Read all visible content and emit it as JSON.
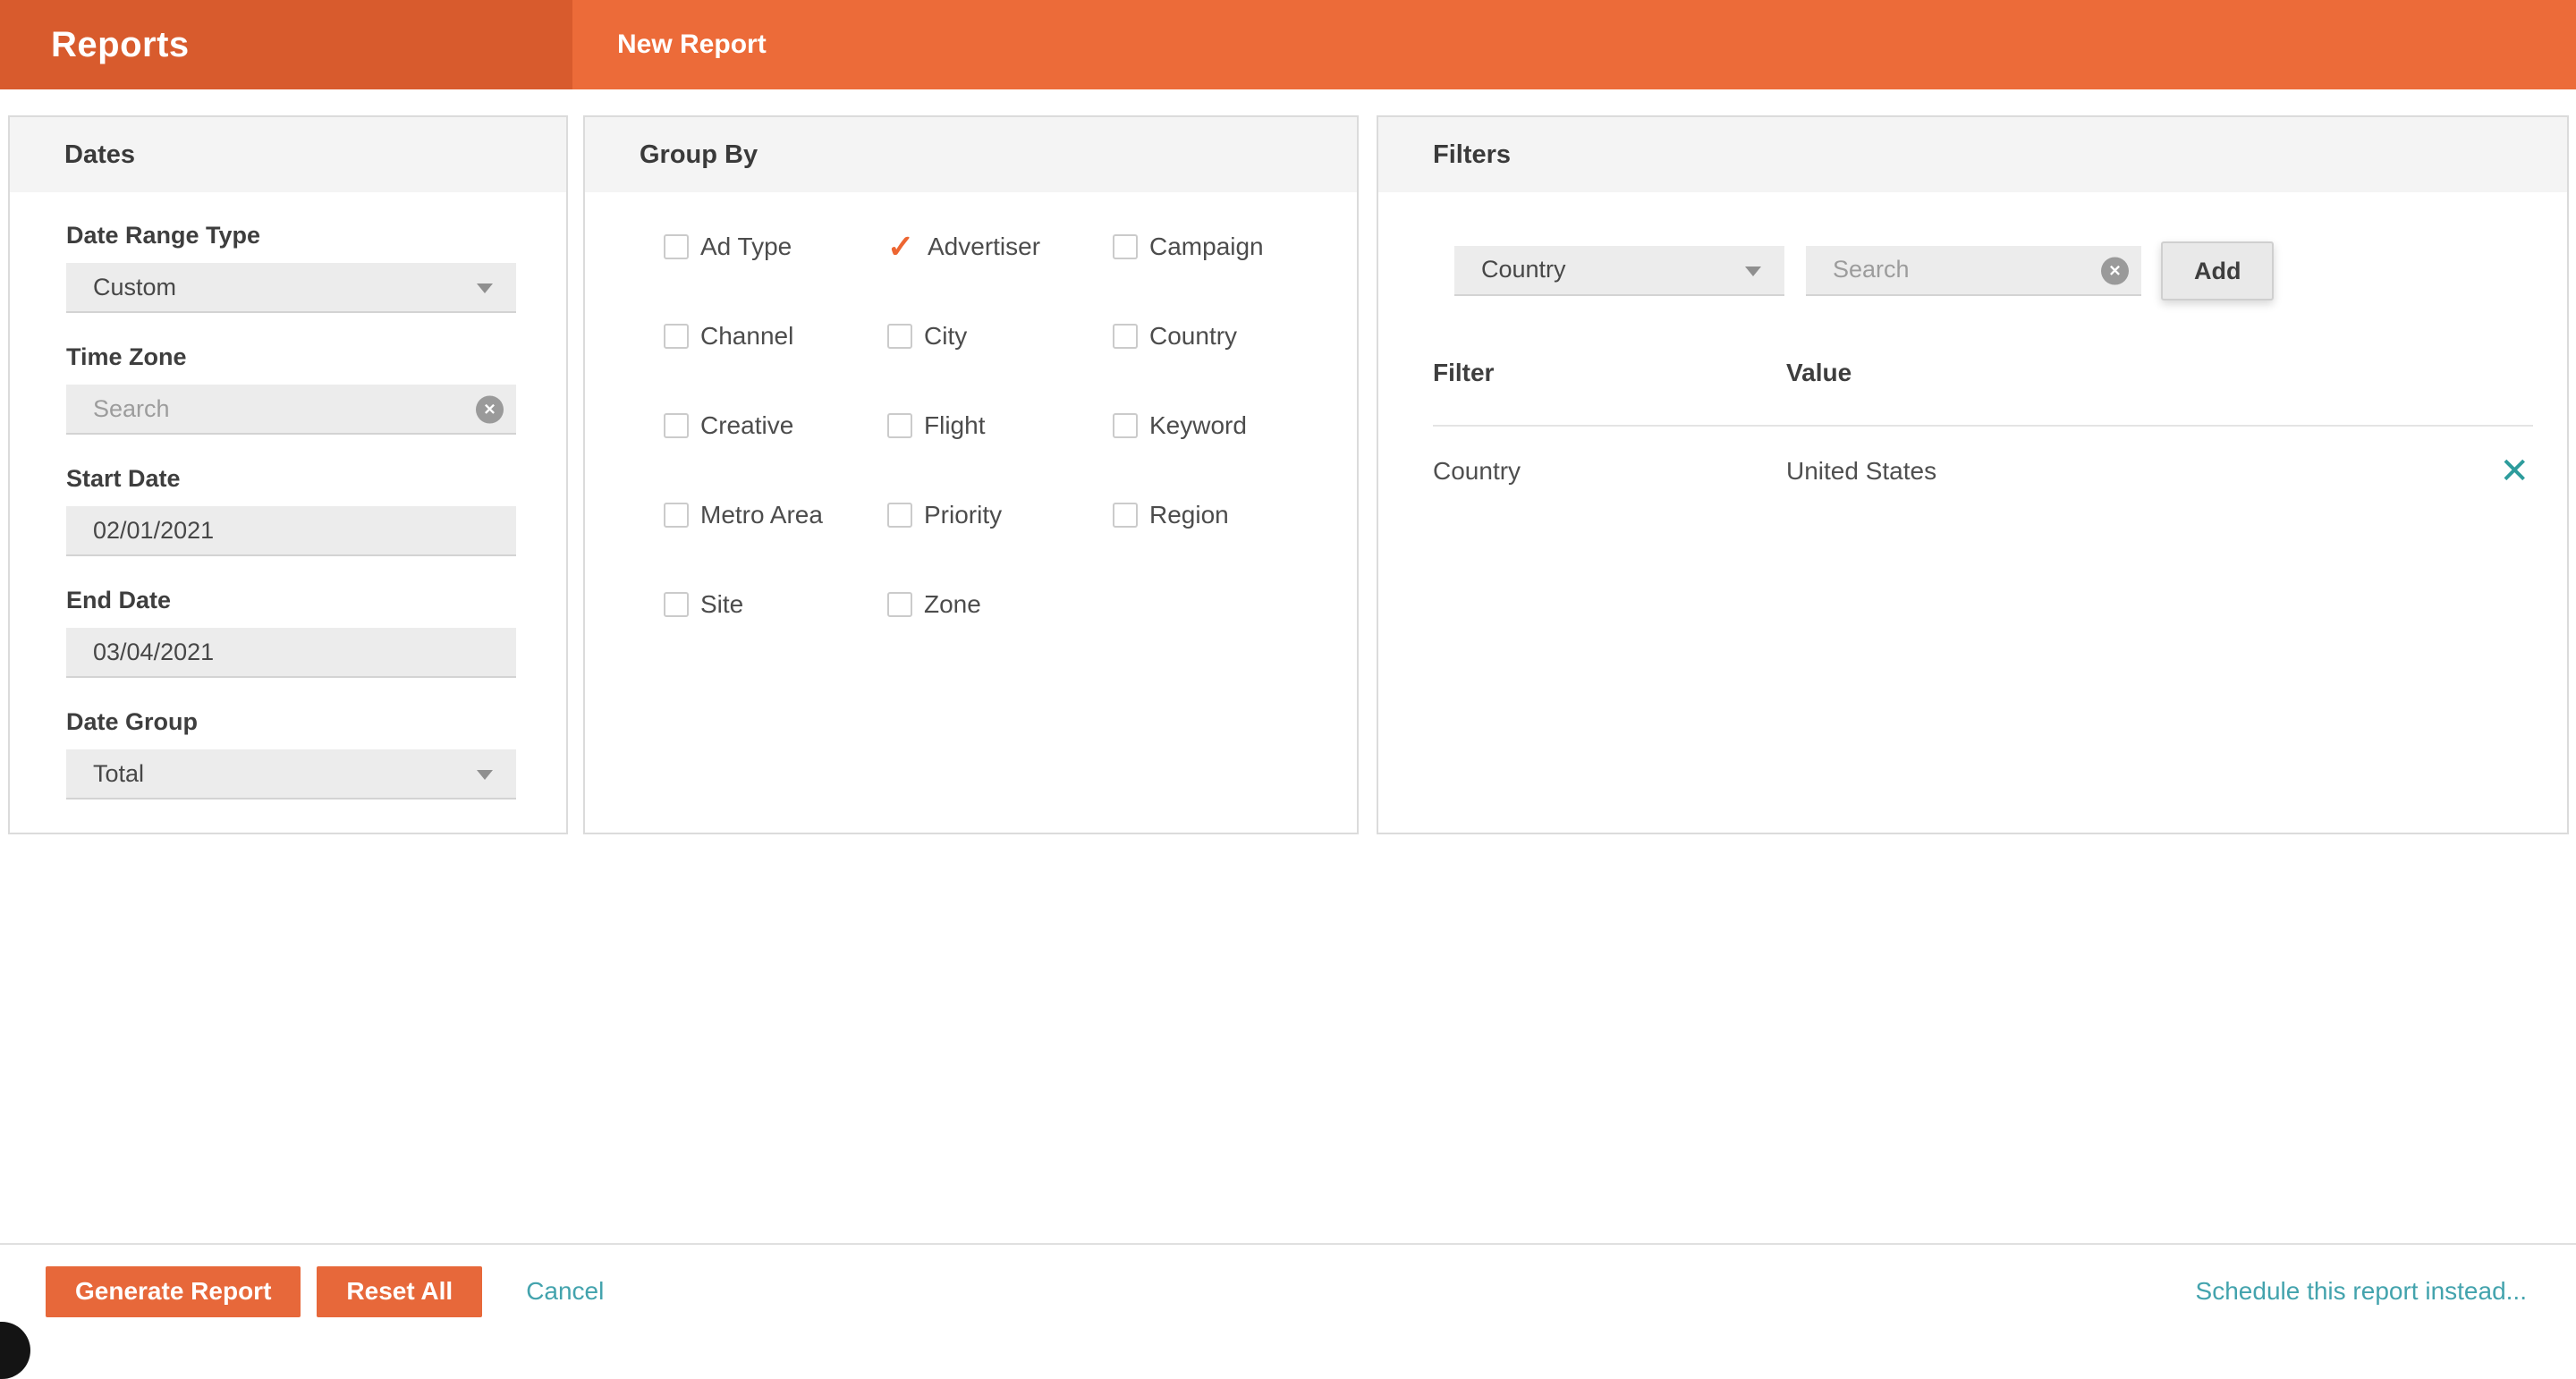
{
  "header": {
    "title": "Reports",
    "tab_label": "New Report"
  },
  "dates": {
    "panel_title": "Dates",
    "date_range_type": {
      "label": "Date Range Type",
      "value": "Custom"
    },
    "time_zone": {
      "label": "Time Zone",
      "placeholder": "Search"
    },
    "start_date": {
      "label": "Start Date",
      "value": "02/01/2021"
    },
    "end_date": {
      "label": "End Date",
      "value": "03/04/2021"
    },
    "date_group": {
      "label": "Date Group",
      "value": "Total"
    }
  },
  "group_by": {
    "panel_title": "Group By",
    "options": [
      {
        "label": "Ad Type",
        "checked": false
      },
      {
        "label": "Advertiser",
        "checked": true
      },
      {
        "label": "Campaign",
        "checked": false
      },
      {
        "label": "Channel",
        "checked": false
      },
      {
        "label": "City",
        "checked": false
      },
      {
        "label": "Country",
        "checked": false
      },
      {
        "label": "Creative",
        "checked": false
      },
      {
        "label": "Flight",
        "checked": false
      },
      {
        "label": "Keyword",
        "checked": false
      },
      {
        "label": "Metro Area",
        "checked": false
      },
      {
        "label": "Priority",
        "checked": false
      },
      {
        "label": "Region",
        "checked": false
      },
      {
        "label": "Site",
        "checked": false
      },
      {
        "label": "Zone",
        "checked": false
      }
    ]
  },
  "filters": {
    "panel_title": "Filters",
    "filter_type_value": "Country",
    "search_placeholder": "Search",
    "add_label": "Add",
    "columns": {
      "filter": "Filter",
      "value": "Value"
    },
    "rows": [
      {
        "filter": "Country",
        "value": "United States"
      }
    ]
  },
  "footer": {
    "generate": "Generate Report",
    "reset": "Reset All",
    "cancel": "Cancel",
    "schedule": "Schedule this report instead..."
  },
  "icons": {
    "clear": "✕",
    "check": "✓",
    "remove": "✕"
  },
  "colors": {
    "header_dark_orange": "#d85b2d",
    "header_light_orange": "#ec6b39",
    "button_orange": "#e7683a",
    "check_orange": "#ed6632",
    "teal_link": "#43a3ad",
    "teal_remove": "#2d9c9c"
  }
}
